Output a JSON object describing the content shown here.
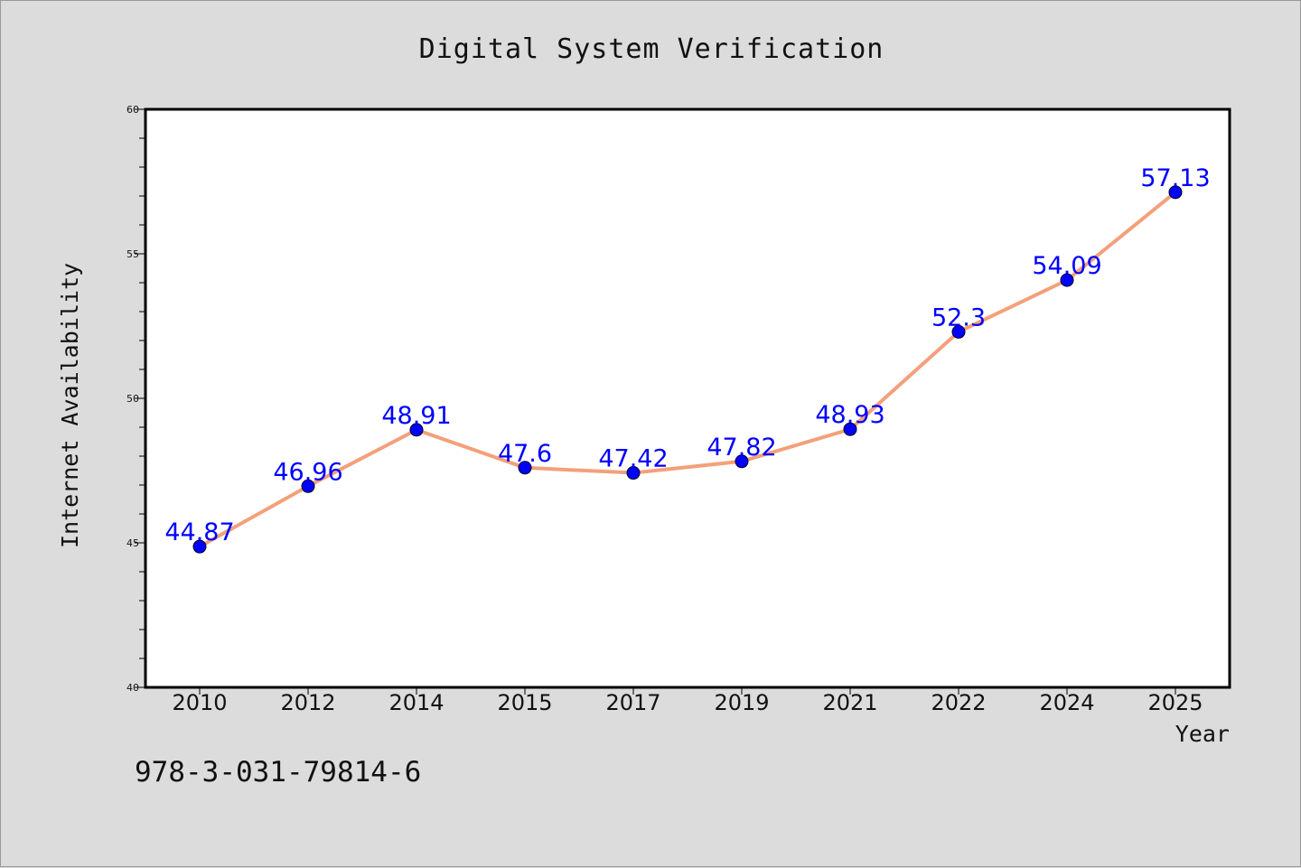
{
  "chart_data": {
    "type": "line",
    "title": "Digital System Verification",
    "xlabel": "Year",
    "ylabel": "Internet Availability",
    "categories": [
      "2010",
      "2012",
      "2014",
      "2015",
      "2017",
      "2019",
      "2021",
      "2022",
      "2024",
      "2025"
    ],
    "series": [
      {
        "name": "",
        "values": [
          44.87,
          46.96,
          48.91,
          47.6,
          47.42,
          47.82,
          48.93,
          52.3,
          54.09,
          57.13
        ],
        "labels": [
          "44.87",
          "46.96",
          "48.91",
          "47.6",
          "47.42",
          "47.82",
          "48.93",
          "52.3",
          "54.09",
          "57.13"
        ]
      }
    ],
    "ylim": [
      40,
      60
    ],
    "yticks": [
      "40",
      "45",
      "50",
      "55",
      "60"
    ],
    "grid": false,
    "line_color": "#f4a07a",
    "marker_color": "#0000ff",
    "label_color": "#0000ff",
    "background_color": "#dcdcdc",
    "plot_background_color": "#ffffff"
  },
  "footer": {
    "isbn": "978-3-031-79814-6"
  }
}
